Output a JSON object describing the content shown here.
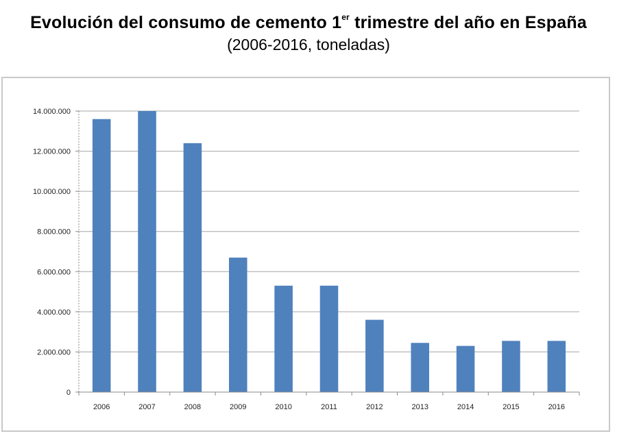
{
  "header": {
    "title_main": "Evolución del consumo de cemento 1",
    "title_sup": "er",
    "title_rest": " trimestre del año en España",
    "subtitle": "(2006-2016, toneladas)"
  },
  "chart_data": {
    "type": "bar",
    "title": "Evolución del consumo de cemento 1er trimestre del año en España",
    "subtitle": "(2006-2016, toneladas)",
    "categories": [
      "2006",
      "2007",
      "2008",
      "2009",
      "2010",
      "2011",
      "2012",
      "2013",
      "2014",
      "2015",
      "2016"
    ],
    "values": [
      13600000,
      14000000,
      12400000,
      6700000,
      5300000,
      5300000,
      3600000,
      2450000,
      2300000,
      2550000,
      2550000
    ],
    "ylim": [
      0,
      14000000
    ],
    "y_ticks": [
      0,
      2000000,
      4000000,
      6000000,
      8000000,
      10000000,
      12000000,
      14000000
    ],
    "y_tick_labels": [
      "0",
      "2.000.000",
      "4.000.000",
      "6.000.000",
      "8.000.000",
      "10.000.000",
      "12.000.000",
      "14.000.000"
    ],
    "xlabel": "",
    "ylabel": "",
    "grid": true,
    "legend": "none",
    "bar_color": "#4f81bd",
    "grid_color": "#a6a6a6"
  }
}
